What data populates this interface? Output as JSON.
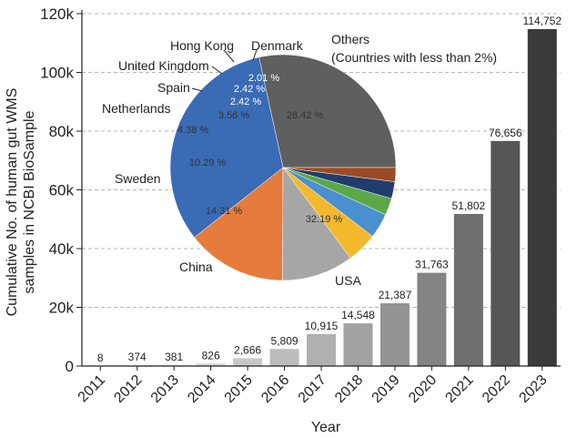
{
  "chart_data": [
    {
      "type": "bar",
      "xlabel": "Year",
      "ylabel": "Cumulative No. of human gut WMS samples in NCBI BioSample",
      "ylabel_lines": [
        "Cumulative No. of human gut WMS",
        "samples in NCBI BioSample"
      ],
      "categories": [
        "2011",
        "2012",
        "2013",
        "2014",
        "2015",
        "2016",
        "2017",
        "2018",
        "2019",
        "2020",
        "2021",
        "2022",
        "2023"
      ],
      "values": [
        8,
        374,
        381,
        826,
        2666,
        5809,
        10915,
        14548,
        21387,
        31763,
        51802,
        76656,
        114752
      ],
      "data_labels": [
        "8",
        "374",
        "381",
        "826",
        "2,666",
        "5,809",
        "10,915",
        "14,548",
        "21,387",
        "31,763",
        "51,802",
        "76,656",
        "114,752"
      ],
      "ylim": [
        0,
        120000
      ],
      "yticks": [
        0,
        20000,
        40000,
        60000,
        80000,
        100000,
        120000
      ],
      "ytick_labels": [
        "0",
        "20k",
        "40k",
        "60k",
        "80k",
        "100k",
        "120k"
      ],
      "grid": "horizontal dashed",
      "bar_colors": [
        "#e8e8e8",
        "#e2e2e2",
        "#dcdcdc",
        "#d4d4d4",
        "#c8c8c8",
        "#bcbcbc",
        "#b0b0b0",
        "#a2a2a2",
        "#949494",
        "#848484",
        "#6e6e6e",
        "#565656",
        "#3a3a3a"
      ]
    },
    {
      "type": "pie",
      "slices": [
        {
          "label": "Others",
          "sublabel": "(Countries with less than 2%)",
          "value": 28.42,
          "pct_label": "28.42 %",
          "color": "#5f5f5f"
        },
        {
          "label": "USA",
          "value": 32.19,
          "pct_label": "32.19 %",
          "color": "#3a6bb5"
        },
        {
          "label": "China",
          "value": 14.31,
          "pct_label": "14.31 %",
          "color": "#e57b3c"
        },
        {
          "label": "Sweden",
          "value": 10.29,
          "pct_label": "10.29 %",
          "color": "#a6a6a6"
        },
        {
          "label": "Netherlands",
          "value": 4.38,
          "pct_label": "4.38 %",
          "color": "#f2b92c"
        },
        {
          "label": "Spain",
          "value": 3.56,
          "pct_label": "3.56 %",
          "color": "#4a90cf"
        },
        {
          "label": "United Kingdom",
          "value": 2.42,
          "pct_label": "2.42 %",
          "color": "#5aa846"
        },
        {
          "label": "Hong Kong",
          "value": 2.42,
          "pct_label": "2.42 %",
          "color": "#203d6e"
        },
        {
          "label": "Denmark",
          "value": 2.01,
          "pct_label": "2.01 %",
          "color": "#9a4b25"
        }
      ]
    }
  ]
}
